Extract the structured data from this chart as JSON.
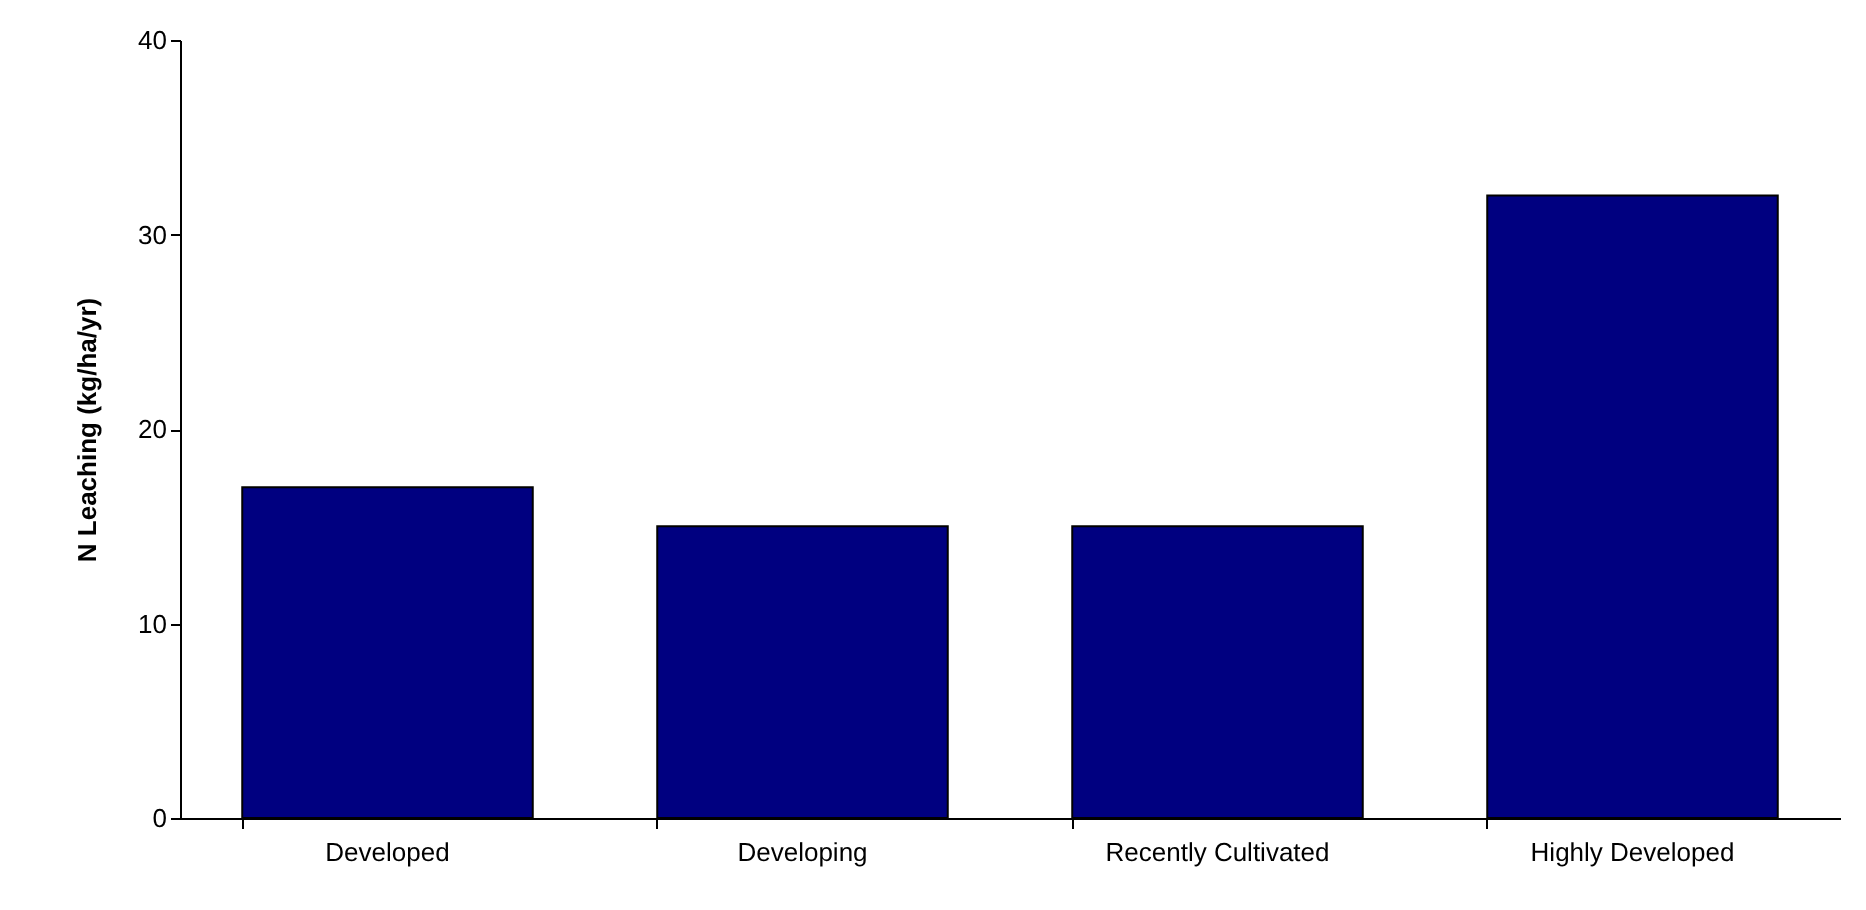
{
  "chart_data": {
    "type": "bar",
    "ylabel": "N Leaching (kg/ha/yr)",
    "categories": [
      "Developed",
      "Developing",
      "Recently Cultivated",
      "Highly Developed"
    ],
    "values": [
      17,
      15,
      15,
      32
    ],
    "color": "#000080",
    "ylim": [
      0,
      40
    ],
    "yticks": [
      0,
      10,
      20,
      30,
      40
    ],
    "grid": false
  }
}
